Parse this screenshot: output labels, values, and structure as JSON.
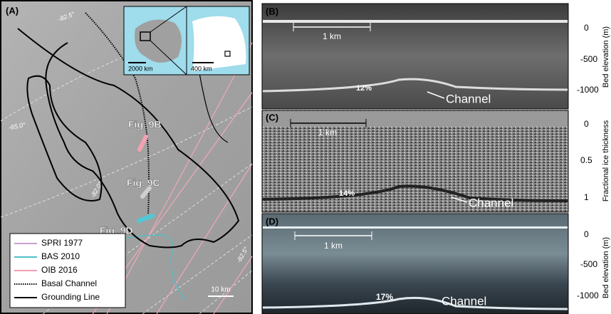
{
  "map": {
    "label": "(A)",
    "graticule_labels": [
      "-82.5°",
      "-65.0°",
      "-82.0°",
      "-82.5°"
    ],
    "figure_labels": [
      "Fig. 9B",
      "Fig. 9C",
      "Fig. 9D"
    ],
    "inset_scales": [
      "2000 km",
      "400 km"
    ],
    "scale_bar": "10 km",
    "legend": [
      "SPRI 1977",
      "BAS 2010",
      "OIB 2016",
      "Basal Channel",
      "Grounding Line"
    ]
  },
  "panels": [
    {
      "label": "(B)",
      "scale": "1 km",
      "percent": "12%",
      "feature": "Channel",
      "axis_title": "Bed elevation (m)",
      "ticks": [
        "0",
        "-500",
        "-1000"
      ]
    },
    {
      "label": "(C)",
      "scale": "1 km",
      "percent": "14%",
      "feature": "Channel",
      "axis_title": "Fractional ice thickness",
      "ticks": [
        "0",
        "0.5",
        "1"
      ]
    },
    {
      "label": "(D)",
      "scale": "1 km",
      "percent": "17%",
      "feature": "Channel",
      "axis_title": "Bed elevation (m)",
      "ticks": [
        "0",
        "-500",
        "-1000"
      ]
    }
  ]
}
